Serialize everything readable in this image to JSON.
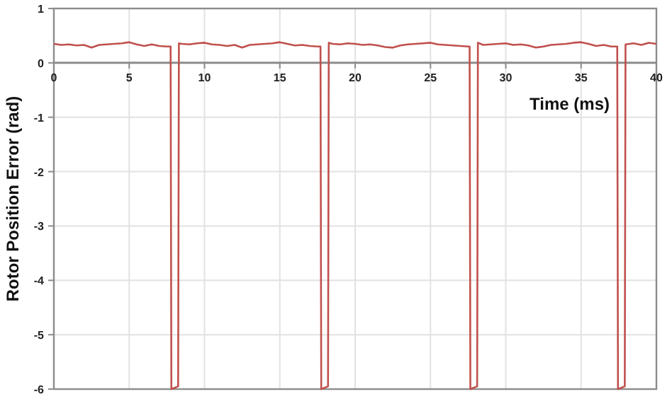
{
  "chart_data": {
    "type": "line",
    "xlabel": "Time (ms)",
    "ylabel": "Rotor Position Error (rad)",
    "x": [
      0,
      0.5,
      1,
      1.5,
      2,
      2.5,
      3,
      3.5,
      4,
      4.5,
      5,
      5.5,
      6,
      6.5,
      7,
      7.5,
      7.75,
      7.8,
      8.25,
      8.3,
      8.5,
      9,
      9.5,
      10,
      10.5,
      11,
      11.5,
      12,
      12.5,
      13,
      13.5,
      14,
      14.5,
      15,
      15.5,
      16,
      16.5,
      17,
      17.5,
      17.7,
      17.75,
      18.2,
      18.25,
      18.5,
      19,
      19.5,
      20,
      20.5,
      21,
      21.5,
      22,
      22.5,
      23,
      23.5,
      24,
      24.5,
      25,
      25.5,
      26,
      26.5,
      27,
      27.5,
      27.6,
      27.65,
      28.1,
      28.15,
      28.5,
      29,
      29.5,
      30,
      30.5,
      31,
      31.5,
      32,
      32.5,
      33,
      33.5,
      34,
      34.5,
      35,
      35.5,
      36,
      36.5,
      37,
      37.4,
      37.45,
      37.9,
      37.95,
      38.5,
      39,
      39.5,
      40
    ],
    "series": [
      {
        "color": "#c0504d",
        "values": [
          0.35,
          0.33,
          0.34,
          0.32,
          0.33,
          0.28,
          0.33,
          0.34,
          0.35,
          0.36,
          0.38,
          0.34,
          0.31,
          0.34,
          0.31,
          0.3,
          0.3,
          -6,
          -5.95,
          0.36,
          0.35,
          0.34,
          0.36,
          0.37,
          0.34,
          0.33,
          0.31,
          0.33,
          0.28,
          0.33,
          0.34,
          0.35,
          0.36,
          0.38,
          0.35,
          0.32,
          0.33,
          0.31,
          0.3,
          0.3,
          -6,
          -5.95,
          0.37,
          0.35,
          0.34,
          0.36,
          0.35,
          0.33,
          0.34,
          0.32,
          0.29,
          0.28,
          0.32,
          0.34,
          0.35,
          0.36,
          0.37,
          0.34,
          0.33,
          0.32,
          0.31,
          0.3,
          0.3,
          -6,
          -5.95,
          0.37,
          0.33,
          0.34,
          0.35,
          0.36,
          0.33,
          0.34,
          0.32,
          0.28,
          0.3,
          0.33,
          0.34,
          0.35,
          0.37,
          0.38,
          0.35,
          0.31,
          0.33,
          0.3,
          0.3,
          -6,
          -5.95,
          0.34,
          0.36,
          0.33,
          0.37,
          0.35
        ]
      }
    ],
    "xlim": [
      0,
      40
    ],
    "xticks": [
      0,
      5,
      10,
      15,
      20,
      25,
      30,
      35,
      40
    ],
    "ylim": [
      -6,
      1
    ],
    "yticks": [
      -6,
      -5,
      -4,
      -3,
      -2,
      -1,
      0,
      1
    ],
    "grid": true,
    "marker": "none",
    "line_style": "solid"
  }
}
